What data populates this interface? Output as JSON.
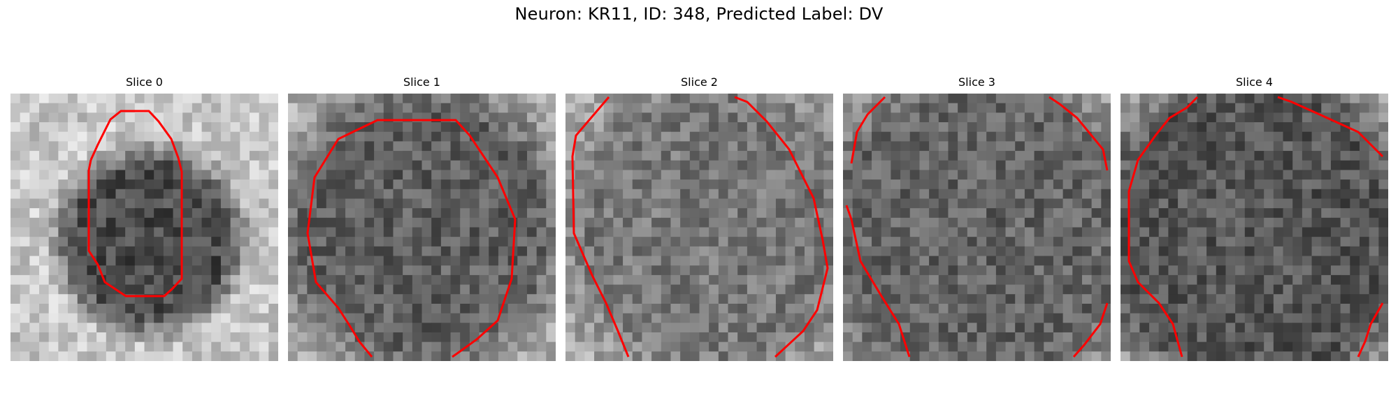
{
  "figure": {
    "title": "Neuron: KR11, ID: 348, Predicted Label: DV",
    "contour_color": "#ff0000"
  },
  "panels": [
    {
      "title": "Slice 0"
    },
    {
      "title": "Slice 1"
    },
    {
      "title": "Slice 2"
    },
    {
      "title": "Slice 3"
    },
    {
      "title": "Slice 4"
    }
  ]
}
